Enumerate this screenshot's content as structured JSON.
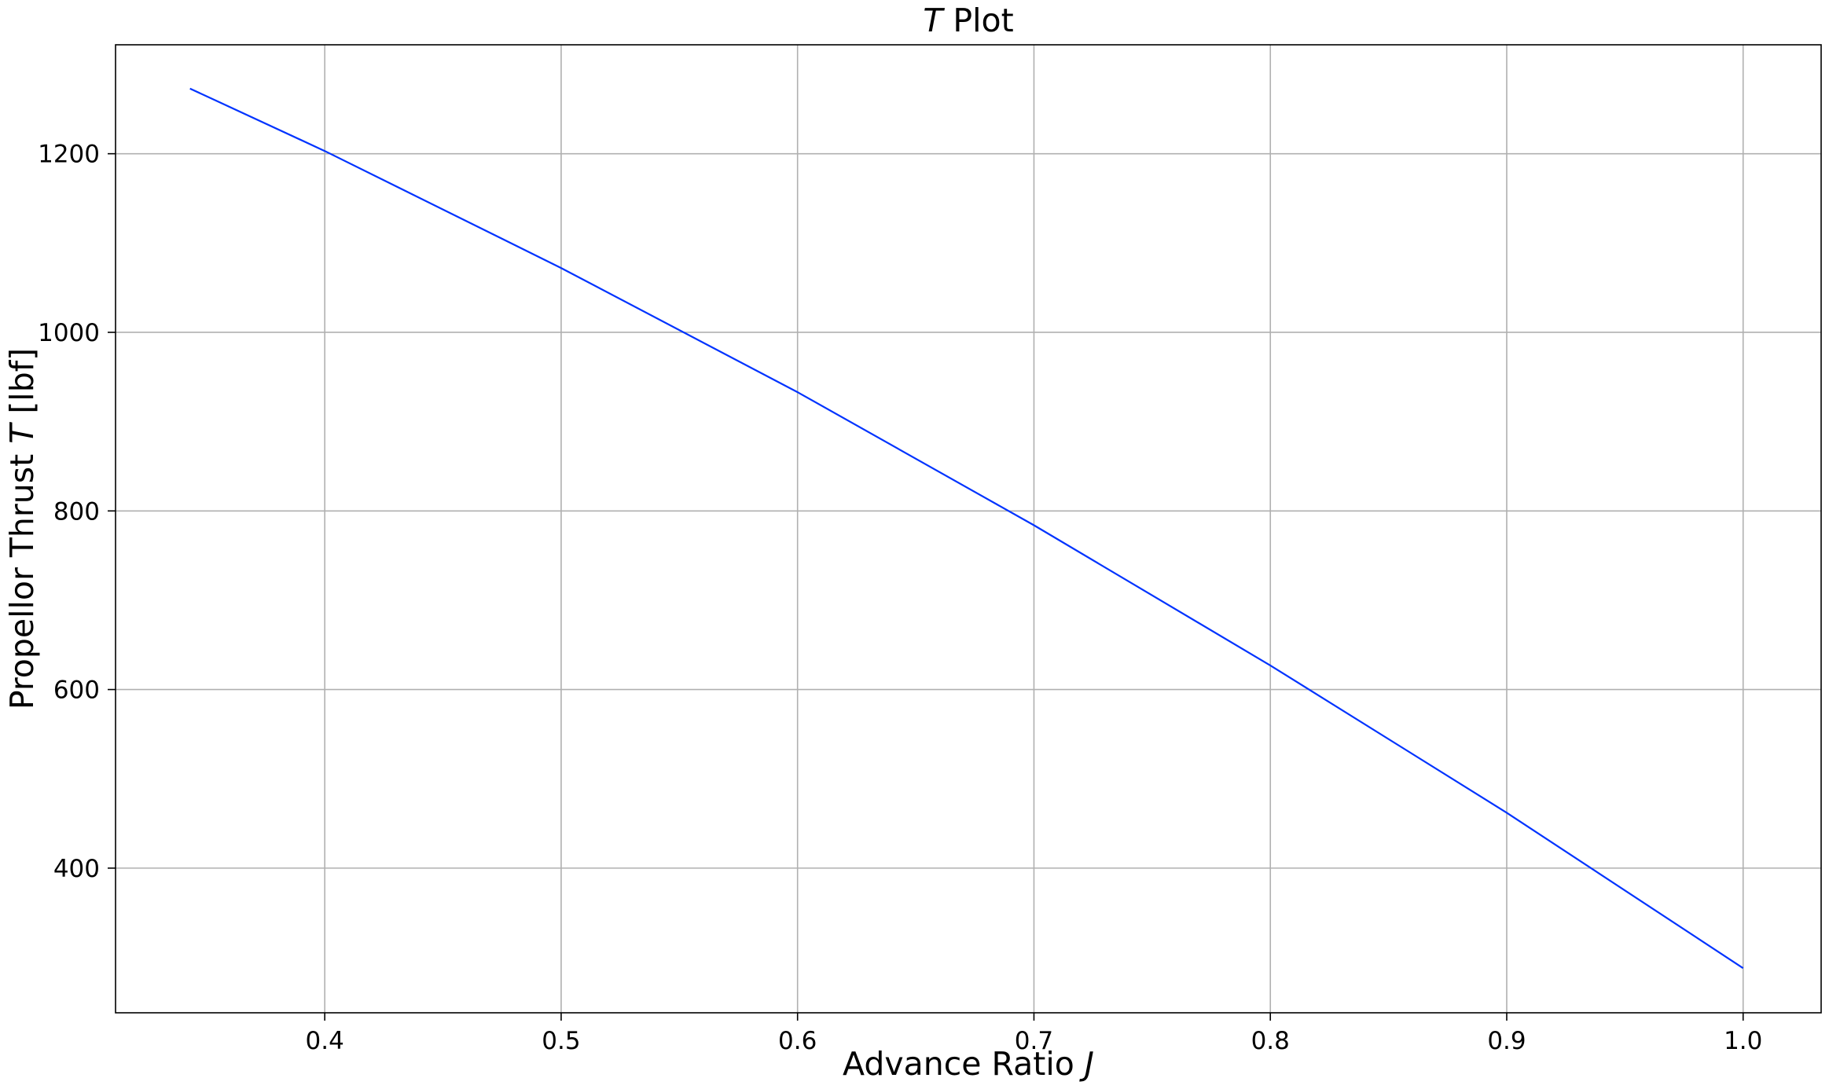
{
  "chart_data": {
    "type": "line",
    "title": "T Plot",
    "title_italic_part": "T",
    "title_plain_part": " Plot",
    "xlabel": "Advance Ratio J",
    "xlabel_plain_part": "Advance Ratio ",
    "xlabel_italic_part": "J",
    "ylabel": "Propellor Thrust T [lbf]",
    "ylabel_plain_before": "Propellor Thrust ",
    "ylabel_italic_part": "T",
    "ylabel_plain_after": " [lbf]",
    "xlim": [
      0.3115,
      1.033
    ],
    "ylim": [
      238,
      1322
    ],
    "x_ticks": [
      {
        "value": 0.4,
        "label": "0.4"
      },
      {
        "value": 0.5,
        "label": "0.5"
      },
      {
        "value": 0.6,
        "label": "0.6"
      },
      {
        "value": 0.7,
        "label": "0.7"
      },
      {
        "value": 0.8,
        "label": "0.8"
      },
      {
        "value": 0.9,
        "label": "0.9"
      },
      {
        "value": 1.0,
        "label": "1.0"
      }
    ],
    "y_ticks": [
      {
        "value": 400,
        "label": "400"
      },
      {
        "value": 600,
        "label": "600"
      },
      {
        "value": 800,
        "label": "800"
      },
      {
        "value": 1000,
        "label": "1000"
      },
      {
        "value": 1200,
        "label": "1200"
      }
    ],
    "grid": true,
    "series": [
      {
        "color": "#0033ff",
        "x": [
          0.343,
          0.4,
          0.5,
          0.6,
          0.7,
          0.8,
          0.9,
          1.0
        ],
        "y": [
          1273,
          1203,
          1072,
          933,
          784,
          627,
          462,
          288
        ]
      }
    ]
  }
}
